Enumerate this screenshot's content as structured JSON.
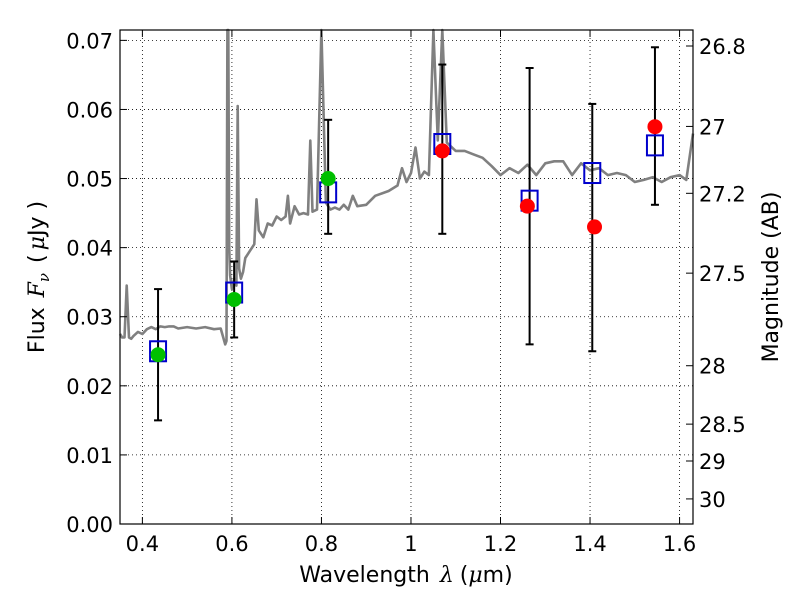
{
  "chart_data": {
    "type": "scatter",
    "xlabel_prefix": "Wavelength",
    "xlabel_symbol": "λ",
    "xlabel_unit_open": "(",
    "xlabel_unit_mu": "μ",
    "xlabel_unit_rest": "m)",
    "ylabel_prefix": "Flux",
    "ylabel_symbol": "F",
    "ylabel_subscript": "ν",
    "ylabel_unit_open": "(",
    "ylabel_unit_mu": "μ",
    "ylabel_unit_rest": "Jy )",
    "y2label": "Magnitude (AB)",
    "xlim": [
      0.35,
      1.63
    ],
    "ylim": [
      0.0,
      0.0715
    ],
    "grid": true,
    "x_ticks": [
      0.4,
      0.6,
      0.8,
      1.0,
      1.2,
      1.4,
      1.6
    ],
    "x_tick_labels": [
      "0.4",
      "0.6",
      "0.8",
      "1",
      "1.2",
      "1.4",
      "1.6"
    ],
    "y_ticks": [
      0.0,
      0.01,
      0.02,
      0.03,
      0.04,
      0.05,
      0.06,
      0.07
    ],
    "y_tick_labels": [
      "0.00",
      "0.01",
      "0.02",
      "0.03",
      "0.04",
      "0.05",
      "0.06",
      "0.07"
    ],
    "y2_ticks": [
      26.8,
      27.0,
      27.2,
      27.5,
      28.0,
      28.5,
      29.0,
      30.0
    ],
    "y2_tick_labels": [
      "26.8",
      "27",
      "27.2",
      "27.5",
      "28",
      "28.5",
      "29",
      "30"
    ],
    "series": [
      {
        "name": "model spectrum",
        "kind": "line",
        "color": "#808080",
        "x": [
          0.35,
          0.355,
          0.36,
          0.365,
          0.37,
          0.375,
          0.38,
          0.39,
          0.4,
          0.41,
          0.42,
          0.43,
          0.44,
          0.45,
          0.46,
          0.47,
          0.48,
          0.5,
          0.52,
          0.54,
          0.56,
          0.575,
          0.585,
          0.588,
          0.59,
          0.592,
          0.594,
          0.596,
          0.6,
          0.605,
          0.61,
          0.613,
          0.616,
          0.62,
          0.625,
          0.63,
          0.64,
          0.65,
          0.655,
          0.66,
          0.67,
          0.68,
          0.69,
          0.7,
          0.71,
          0.72,
          0.725,
          0.73,
          0.74,
          0.75,
          0.76,
          0.77,
          0.775,
          0.78,
          0.79,
          0.8,
          0.81,
          0.82,
          0.83,
          0.84,
          0.85,
          0.86,
          0.87,
          0.88,
          0.9,
          0.92,
          0.95,
          0.97,
          0.98,
          0.99,
          1.0,
          1.01,
          1.02,
          1.03,
          1.04,
          1.05,
          1.06,
          1.07,
          1.08,
          1.1,
          1.12,
          1.14,
          1.16,
          1.18,
          1.2,
          1.22,
          1.24,
          1.26,
          1.28,
          1.3,
          1.32,
          1.34,
          1.36,
          1.38,
          1.4,
          1.42,
          1.44,
          1.46,
          1.48,
          1.5,
          1.52,
          1.54,
          1.56,
          1.58,
          1.6,
          1.615,
          1.63
        ],
        "y": [
          0.0275,
          0.027,
          0.027,
          0.0345,
          0.027,
          0.0268,
          0.0272,
          0.0278,
          0.0275,
          0.0282,
          0.0285,
          0.0282,
          0.0286,
          0.0285,
          0.0286,
          0.0286,
          0.0283,
          0.0285,
          0.0283,
          0.0285,
          0.0282,
          0.0283,
          0.026,
          0.0265,
          0.0715,
          0.0715,
          0.04,
          0.036,
          0.034,
          0.0355,
          0.0345,
          0.0605,
          0.037,
          0.0355,
          0.0365,
          0.0385,
          0.0395,
          0.0405,
          0.047,
          0.0425,
          0.0415,
          0.0435,
          0.0432,
          0.0445,
          0.044,
          0.0445,
          0.0475,
          0.0435,
          0.046,
          0.0448,
          0.045,
          0.0448,
          0.0555,
          0.0452,
          0.0455,
          0.0715,
          0.0465,
          0.0455,
          0.0458,
          0.0455,
          0.0462,
          0.0455,
          0.0475,
          0.046,
          0.0462,
          0.0475,
          0.0482,
          0.049,
          0.0515,
          0.0495,
          0.0508,
          0.0545,
          0.05,
          0.051,
          0.0505,
          0.0715,
          0.0555,
          0.0715,
          0.0552,
          0.054,
          0.054,
          0.0535,
          0.053,
          0.0518,
          0.0505,
          0.0515,
          0.0508,
          0.052,
          0.0505,
          0.0522,
          0.0525,
          0.0525,
          0.0505,
          0.0522,
          0.0512,
          0.0515,
          0.0505,
          0.0508,
          0.0505,
          0.0495,
          0.0498,
          0.0502,
          0.0495,
          0.0502,
          0.0505,
          0.0498,
          0.0565
        ]
      },
      {
        "name": "observed (green)",
        "kind": "points",
        "color": "#00bf00",
        "x": [
          0.435,
          0.605,
          0.815
        ],
        "y": [
          0.0245,
          0.0325,
          0.05
        ]
      },
      {
        "name": "observed (red)",
        "kind": "points",
        "color": "#ff0000",
        "x": [
          1.07,
          1.26,
          1.41,
          1.545
        ],
        "y": [
          0.054,
          0.046,
          0.043,
          0.0575
        ]
      },
      {
        "name": "model synthetic photometry",
        "kind": "open-squares",
        "color": "#0000cc",
        "x": [
          0.435,
          0.605,
          0.815,
          1.07,
          1.265,
          1.405,
          1.545
        ],
        "y": [
          0.025,
          0.0335,
          0.048,
          0.055,
          0.0468,
          0.0508,
          0.0548
        ]
      },
      {
        "name": "error bars",
        "kind": "errorbars",
        "color": "#000000",
        "x": [
          0.435,
          0.605,
          0.815,
          1.07,
          1.265,
          1.405,
          1.545
        ],
        "ylow": [
          0.015,
          0.027,
          0.042,
          0.042,
          0.026,
          0.025,
          0.0462
        ],
        "yhigh": [
          0.034,
          0.038,
          0.0585,
          0.0665,
          0.066,
          0.0608,
          0.069
        ]
      }
    ]
  }
}
